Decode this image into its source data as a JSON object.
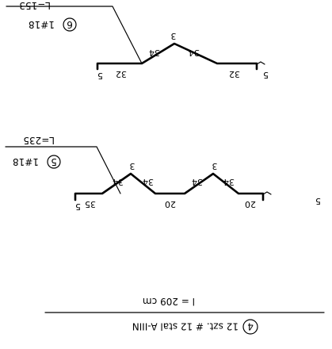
{
  "drawing": {
    "footer": {
      "badge_number": "4",
      "spec_text": "12 szt. # 12 stal A-IIIN",
      "length_text": "l = 209 cm"
    },
    "bar5": {
      "length_label": "L=235",
      "mark_number": "5",
      "mark_text": "1#18",
      "dims": [
        "5",
        "35",
        "34",
        "3",
        "34",
        "20",
        "34",
        "3",
        "34",
        "20",
        "5"
      ]
    },
    "bar6": {
      "length_label": "L=153",
      "mark_number": "6",
      "mark_text": "1#18",
      "dims": [
        "5",
        "32",
        "34",
        "3",
        "34",
        "32",
        "5"
      ]
    }
  }
}
